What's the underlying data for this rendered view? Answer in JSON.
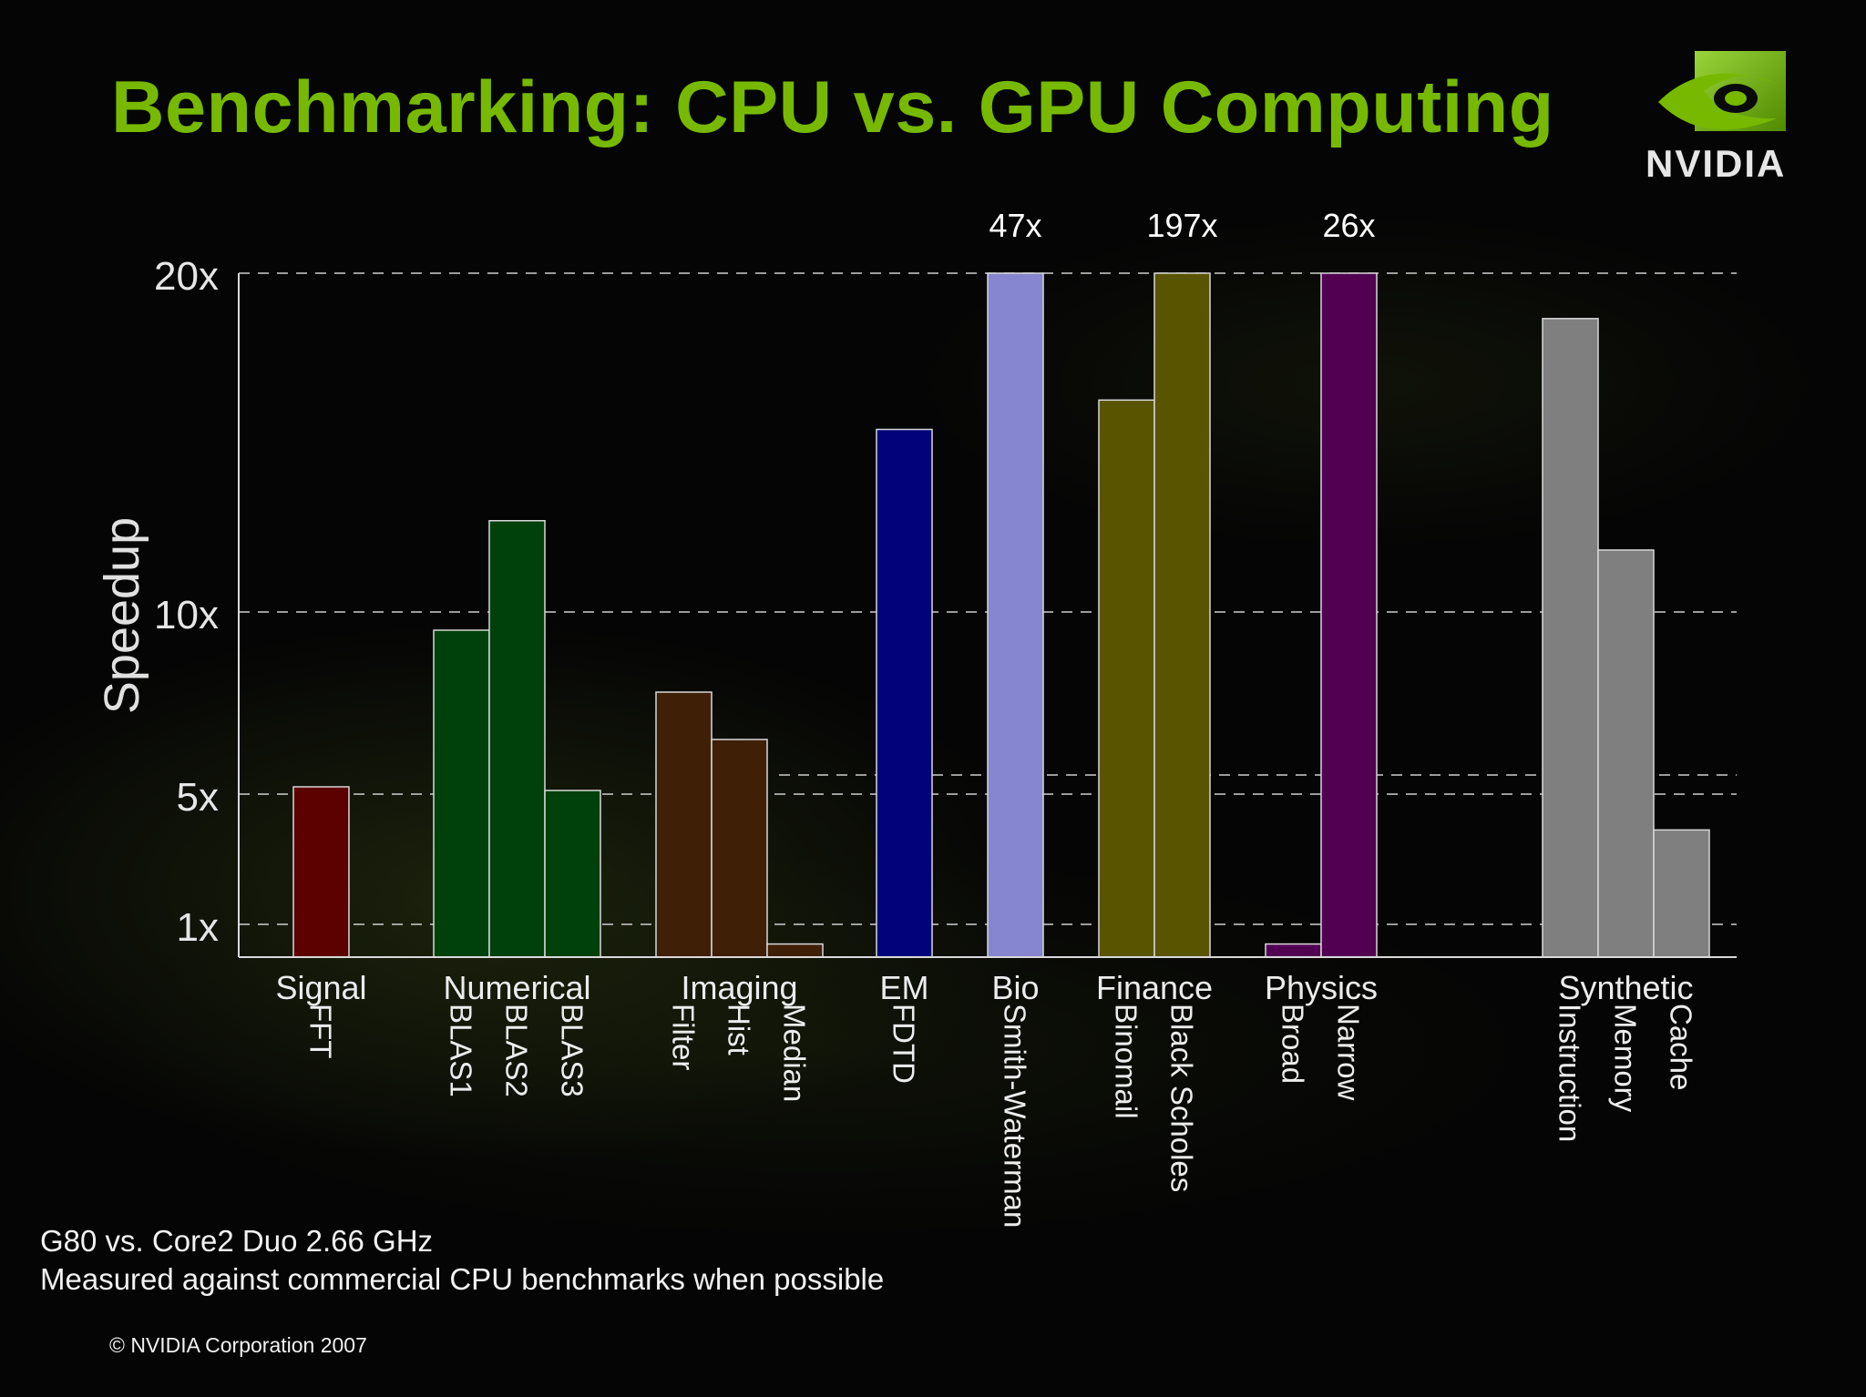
{
  "slide": {
    "title": "Benchmarking: CPU vs. GPU Computing",
    "logo_text": "NVIDIA",
    "footnote_line1": "G80 vs. Core2 Duo 2.66 GHz",
    "footnote_line2": "Measured against commercial CPU benchmarks when possible",
    "copyright": "© NVIDIA Corporation 2007",
    "colors": {
      "title": "#76b900",
      "background": "#000000",
      "text": "#f2f2f2"
    }
  },
  "chart_data": {
    "type": "bar",
    "title": "",
    "ylabel": "Speedup",
    "y_ticks": [
      {
        "label": "1x",
        "value": 1
      },
      {
        "label": "5x",
        "value": 5
      },
      {
        "label": "10x",
        "value": 10
      },
      {
        "label": "20x",
        "value": 20
      }
    ],
    "axis_scale": "nonlinear (1x, 5x, 10x, 20x gridlines); bars above 20x are clipped at the top",
    "groups": [
      {
        "name": "Signal",
        "color": "#5c0000",
        "bars": [
          {
            "label": "FFT",
            "value": 5.2
          }
        ]
      },
      {
        "name": "Numerical",
        "color": "#00400a",
        "bars": [
          {
            "label": "BLAS1",
            "value": 9.5
          },
          {
            "label": "BLAS2",
            "value": 12.8
          },
          {
            "label": "BLAS3",
            "value": 5.1
          }
        ]
      },
      {
        "name": "Imaging",
        "color": "#3f1f06",
        "bars": [
          {
            "label": "Filter",
            "value": 7.8
          },
          {
            "label": "Hist",
            "value": 6.5
          },
          {
            "label": "Median",
            "value": 0.4
          }
        ]
      },
      {
        "name": "EM",
        "color": "#02027a",
        "bars": [
          {
            "label": "FDTD",
            "value": 15.6
          }
        ]
      },
      {
        "name": "Bio",
        "color": "#8585d0",
        "bars": [
          {
            "label": "Smith-Waterman",
            "value": 47,
            "annotation": "47x",
            "clipped": true
          }
        ]
      },
      {
        "name": "Finance",
        "color": "#585400",
        "bars": [
          {
            "label": "Binomail",
            "value": 16.5
          },
          {
            "label": "Black Scholes",
            "value": 197,
            "annotation": "197x",
            "clipped": true
          }
        ]
      },
      {
        "name": "Physics",
        "color": "#520052",
        "bars": [
          {
            "label": "Broad",
            "value": 0.4
          },
          {
            "label": "Narrow",
            "value": 26,
            "annotation": "26x",
            "clipped": true
          }
        ]
      },
      {
        "name": "Synthetic",
        "color": "#7f7f7f",
        "bars": [
          {
            "label": "Instruction",
            "value": 19
          },
          {
            "label": "Memory",
            "value": 11.9
          },
          {
            "label": "Cache",
            "value": 3.9
          }
        ]
      }
    ],
    "grid": true,
    "legend": "none"
  }
}
